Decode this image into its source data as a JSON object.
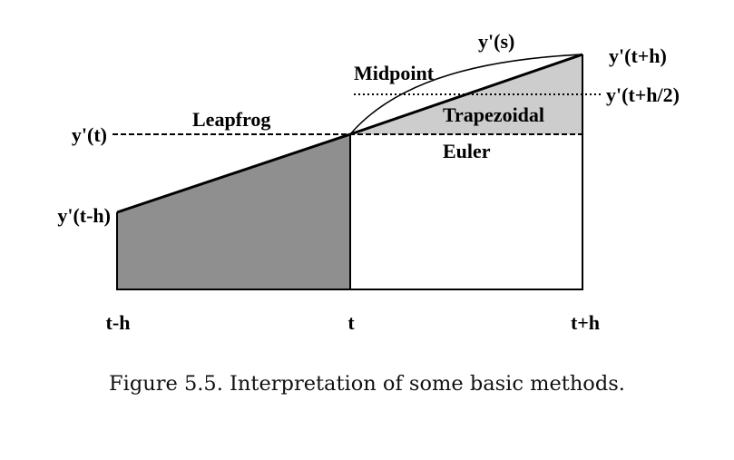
{
  "colors": {
    "leapfrog_fill": "#8f8f8f",
    "trapezoid_fill": "#cdcdcd",
    "line": "#000000"
  },
  "y_labels": {
    "y_t": "y'(t)",
    "y_t_minus_h": "y'(t-h)",
    "y_t_plus_h": "y'(t+h)",
    "y_t_plus_half_h": "y'(t+h/2)",
    "y_s": "y'(s)"
  },
  "methods": {
    "leapfrog": "Leapfrog",
    "midpoint": "Midpoint",
    "trapezoidal": "Trapezoidal",
    "euler": "Euler"
  },
  "x_ticks": {
    "t_minus_h": "t-h",
    "t": "t",
    "t_plus_h": "t+h"
  },
  "caption": "Figure 5.5.  Interpretation of some basic methods."
}
